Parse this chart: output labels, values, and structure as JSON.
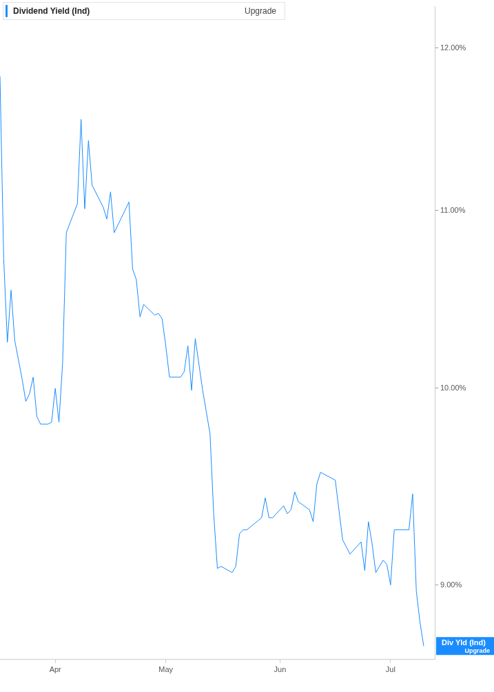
{
  "chart_data": {
    "type": "line",
    "log": "y",
    "legend": "top left",
    "grid": false,
    "marker": "none",
    "line_style": "solid",
    "x": [
      "--03-17",
      "--03-18",
      "--03-19",
      "--03-20",
      "--03-21",
      "--03-23",
      "--03-24",
      "--03-25",
      "--03-26",
      "--03-27",
      "--03-28",
      "--03-30",
      "--03-31",
      "--04-01",
      "--04-02",
      "--04-03",
      "--04-04",
      "--04-07",
      "--04-08",
      "--04-09",
      "--04-10",
      "--04-11",
      "--04-14",
      "--04-15",
      "--04-16",
      "--04-17",
      "--04-21",
      "--04-22",
      "--04-23",
      "--04-24",
      "--04-25",
      "--04-28",
      "--04-29",
      "--04-30",
      "--05-01",
      "--05-02",
      "--05-05",
      "--05-06",
      "--05-07",
      "--05-08",
      "--05-09",
      "--05-11",
      "--05-13",
      "--05-14",
      "--05-15",
      "--05-16",
      "--05-19",
      "--05-20",
      "--05-21",
      "--05-22",
      "--05-23",
      "--05-27",
      "--05-28",
      "--05-29",
      "--05-30",
      "--06-02",
      "--06-03",
      "--06-04",
      "--06-05",
      "--06-06",
      "--06-09",
      "--06-10",
      "--06-11",
      "--06-12",
      "--06-16",
      "--06-18",
      "--06-20",
      "--06-23",
      "--06-24",
      "--06-25",
      "--06-26",
      "--06-27",
      "--06-29",
      "--06-30",
      "--07-01",
      "--07-02",
      "--07-06",
      "--07-07",
      "--07-08",
      "--07-09",
      "--07-10"
    ],
    "series": [
      {
        "name": "Dividend Yield (Ind)",
        "color": "#1a8cff",
        "values": [
          11.82,
          10.72,
          10.25,
          10.54,
          10.26,
          10.05,
          9.93,
          9.97,
          10.06,
          9.85,
          9.81,
          9.81,
          9.82,
          10.0,
          9.82,
          10.14,
          10.87,
          11.04,
          11.55,
          11.01,
          11.42,
          11.15,
          11.02,
          10.95,
          11.11,
          10.87,
          11.05,
          10.66,
          10.6,
          10.39,
          10.46,
          10.4,
          10.41,
          10.38,
          10.23,
          10.06,
          10.06,
          10.09,
          10.23,
          9.99,
          10.27,
          9.99,
          9.76,
          9.35,
          9.08,
          9.09,
          9.06,
          9.09,
          9.25,
          9.27,
          9.27,
          9.33,
          9.43,
          9.33,
          9.33,
          9.39,
          9.35,
          9.37,
          9.46,
          9.41,
          9.37,
          9.31,
          9.5,
          9.56,
          9.52,
          9.22,
          9.15,
          9.21,
          9.07,
          9.31,
          9.2,
          9.06,
          9.12,
          9.1,
          9.0,
          9.27,
          9.27,
          9.45,
          8.97,
          8.82,
          8.71
        ]
      }
    ],
    "xlim": [
      "--03-17",
      "--07-13"
    ],
    "xticks": [
      {
        "value": "--04-01",
        "label": "Apr"
      },
      {
        "value": "--05-01",
        "label": "May"
      },
      {
        "value": "--06-01",
        "label": "Jun"
      },
      {
        "value": "--07-01",
        "label": "Jul"
      }
    ],
    "ylim": [
      8.65,
      12.27
    ],
    "yticks": [
      {
        "value": 9,
        "label": "9.00%"
      },
      {
        "value": 10,
        "label": "10.00%"
      },
      {
        "value": 11,
        "label": "11.00%"
      },
      {
        "value": 12,
        "label": "12.00%"
      }
    ],
    "annotations": [
      "Upgrade",
      "Div Yld (Ind)",
      "Upgrade"
    ]
  }
}
